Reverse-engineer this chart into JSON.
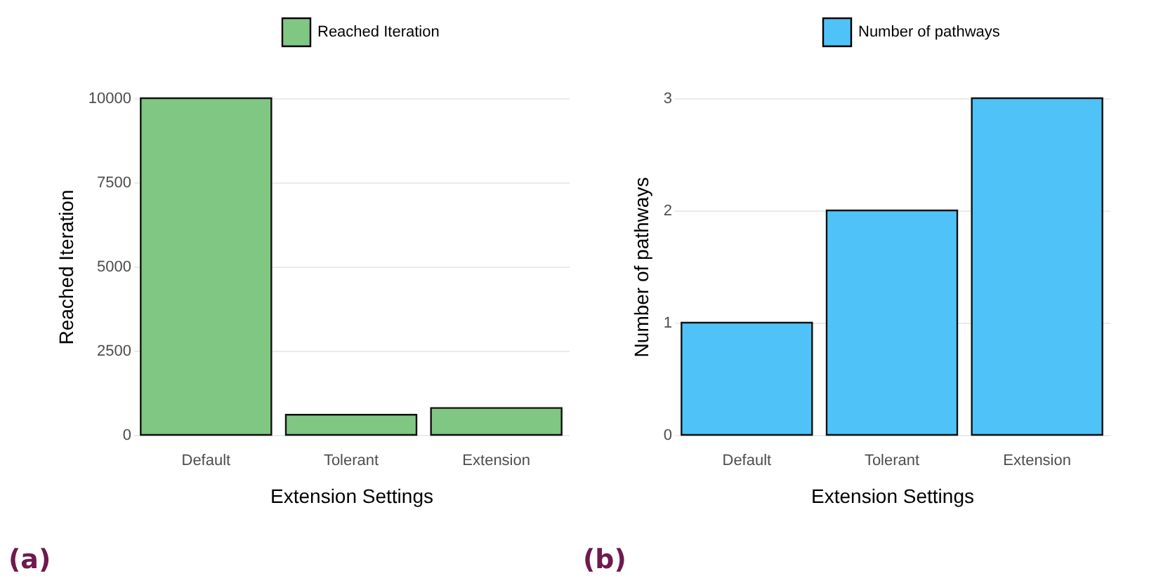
{
  "chart_data": [
    {
      "type": "bar",
      "xlabel": "Extension Settings",
      "ylabel": "Reached Iteration",
      "categories": [
        "Default",
        "Tolerant",
        "Extension"
      ],
      "series": [
        {
          "name": "Reached Iteration",
          "color": "#80c783",
          "values": [
            10000,
            600,
            800
          ]
        }
      ],
      "ylim": [
        0,
        10000
      ],
      "yticks": [
        0,
        2500,
        5000,
        7500,
        10000
      ],
      "grid": "y",
      "legend": "top",
      "annotations": [
        "(a)"
      ]
    },
    {
      "type": "bar",
      "xlabel": "Extension Settings",
      "ylabel": "Number of pathways",
      "categories": [
        "Default",
        "Tolerant",
        "Extension"
      ],
      "series": [
        {
          "name": "Number of pathways",
          "color": "#4fc3f7",
          "values": [
            1,
            2,
            3
          ]
        }
      ],
      "ylim": [
        0,
        3
      ],
      "yticks": [
        0,
        1,
        2,
        3
      ],
      "grid": "y",
      "legend": "top",
      "annotations": [
        "(b)"
      ]
    }
  ]
}
